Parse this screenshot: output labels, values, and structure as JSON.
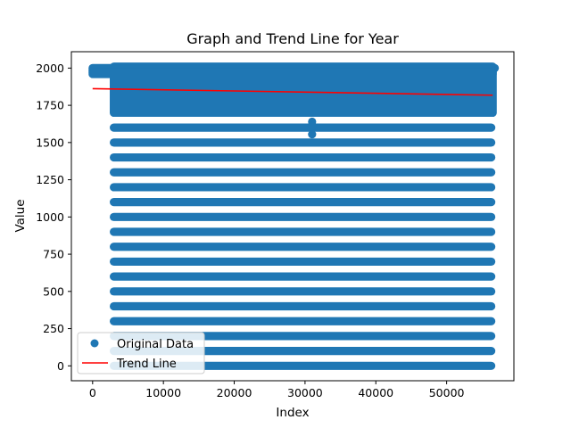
{
  "chart_data": {
    "type": "scatter",
    "title": "Graph and Trend Line for Year",
    "xlabel": "Index",
    "ylabel": "Value",
    "xlim": [
      -3000,
      59500
    ],
    "ylim": [
      -100,
      2110
    ],
    "xticks": [
      0,
      10000,
      20000,
      30000,
      40000,
      50000
    ],
    "yticks": [
      0,
      250,
      500,
      750,
      1000,
      1250,
      1500,
      1750,
      2000
    ],
    "grid": false,
    "legend_position": "lower-left",
    "series": [
      {
        "name": "Original Data",
        "kind": "scatter",
        "color": "#1f77b4",
        "bands": [
          {
            "y": 2000,
            "x_start": 0,
            "x_end": 56800
          },
          {
            "y": 1990,
            "x_start": 0,
            "x_end": 56500
          },
          {
            "y": 1980,
            "x_start": 0,
            "x_end": 56500
          },
          {
            "y": 1970,
            "x_start": 0,
            "x_end": 56500
          },
          {
            "y": 1960,
            "x_start": 0,
            "x_end": 56500
          }
        ],
        "dense_band": {
          "y_min": 1700,
          "y_max": 2010,
          "x_start": 3000,
          "x_end": 56500
        },
        "levels": [
          0,
          100,
          200,
          300,
          400,
          500,
          600,
          700,
          800,
          900,
          1000,
          1100,
          1200,
          1300,
          1400,
          1500,
          1600
        ],
        "levels_x_range": [
          3000,
          56300
        ],
        "outliers": [
          {
            "x": 31000,
            "y": 1640
          },
          {
            "x": 31000,
            "y": 1610
          },
          {
            "x": 31000,
            "y": 1555
          }
        ]
      },
      {
        "name": "Trend Line",
        "kind": "line",
        "color": "#ff0000",
        "x": [
          0,
          56500
        ],
        "y": [
          1862,
          1818
        ]
      }
    ]
  }
}
